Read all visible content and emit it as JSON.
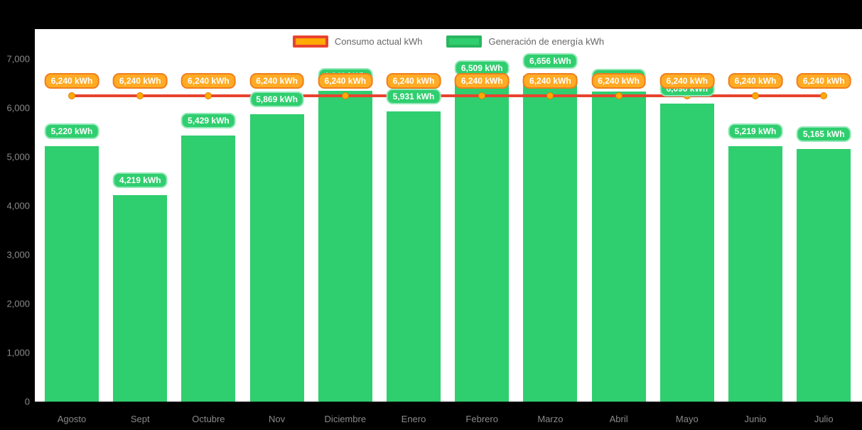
{
  "legend": {
    "consumption_label": "Consumo actual kWh",
    "generation_label": "Generación de energía kWh"
  },
  "colors": {
    "background": "#000000",
    "plot_background": "#ffffff",
    "bar_green": "#2fce6e",
    "badge_green_border": "#93e8b8",
    "line_red": "#e8432f",
    "marker_orange": "#ffaa00",
    "marker_border": "#e07b12",
    "badge_orange_bg": "#ffab24",
    "badge_orange_border": "#f07e1c",
    "legend_green_border": "#28b65f",
    "axis_text": "#8a8a8a"
  },
  "chart_data": {
    "type": "bar",
    "title": "",
    "xlabel": "",
    "ylabel": "",
    "grid": false,
    "legend_position": "top",
    "ylim": [
      0,
      7000
    ],
    "yticks": [
      "0",
      "1,000",
      "2,000",
      "3,000",
      "4,000",
      "5,000",
      "6,000",
      "7,000"
    ],
    "categories": [
      "Agosto",
      "Sept",
      "Octubre",
      "Nov",
      "Diciembre",
      "Enero",
      "Febrero",
      "Marzo",
      "Abril",
      "Mayo",
      "Junio",
      "Julio"
    ],
    "series": [
      {
        "name": "Consumo actual kWh",
        "type": "line",
        "values": [
          6240,
          6240,
          6240,
          6240,
          6240,
          6240,
          6240,
          6240,
          6240,
          6240,
          6240,
          6240
        ],
        "label": "6,240 kWh"
      },
      {
        "name": "Generación de energía kWh",
        "type": "bar",
        "values": [
          5220,
          4219,
          5429,
          5869,
          6349,
          5931,
          6509,
          6656,
          6333,
          6090,
          5219,
          5165
        ],
        "labels": [
          "5,220 kWh",
          "4,219 kWh",
          "5,429 kWh",
          "5,869 kWh",
          "6,349 kWh",
          "5,931 kWh",
          "6,509 kWh",
          "6,656 kWh",
          "6,333 kWh",
          "6,090 kWh",
          "5,219 kWh",
          "5,165 kWh"
        ]
      }
    ]
  }
}
